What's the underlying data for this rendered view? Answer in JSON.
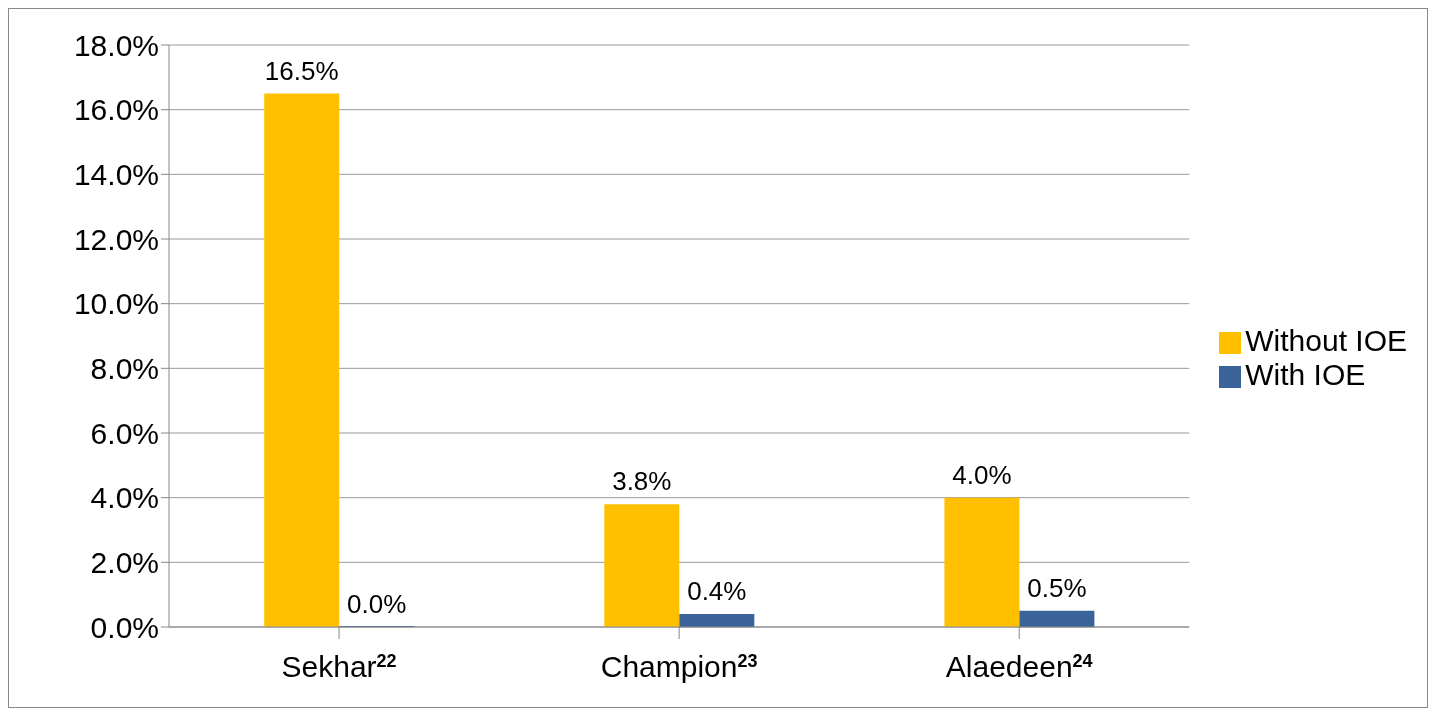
{
  "chart_data": {
    "type": "bar",
    "categories": [
      "Sekhar$^{22}$",
      "Champion$^{23}$",
      "Alaedeen$^{24}$"
    ],
    "series": [
      {
        "name": "Without IOE",
        "color": "#ffc000",
        "values": [
          16.5,
          3.8,
          4.0
        ],
        "value_labels": [
          "16.5%",
          "3.8%",
          "4.0%"
        ]
      },
      {
        "name": "With IOE",
        "color": "#3a6499",
        "values": [
          0.0,
          0.4,
          0.5
        ],
        "value_labels": [
          "0.0%",
          "0.4%",
          "0.5%"
        ]
      }
    ],
    "ylim": [
      0,
      18
    ],
    "yticks": [
      {
        "value": 0,
        "label": "0.0%"
      },
      {
        "value": 2,
        "label": "2.0%"
      },
      {
        "value": 4,
        "label": "4.0%"
      },
      {
        "value": 6,
        "label": "6.0%"
      },
      {
        "value": 8,
        "label": "8.0%"
      },
      {
        "value": 10,
        "label": "10.0%"
      },
      {
        "value": 12,
        "label": "12.0%"
      },
      {
        "value": 14,
        "label": "14.0%"
      },
      {
        "value": 16,
        "label": "16.0%"
      },
      {
        "value": 18,
        "label": "18.0%"
      }
    ],
    "grid": "y",
    "legend": "right"
  }
}
